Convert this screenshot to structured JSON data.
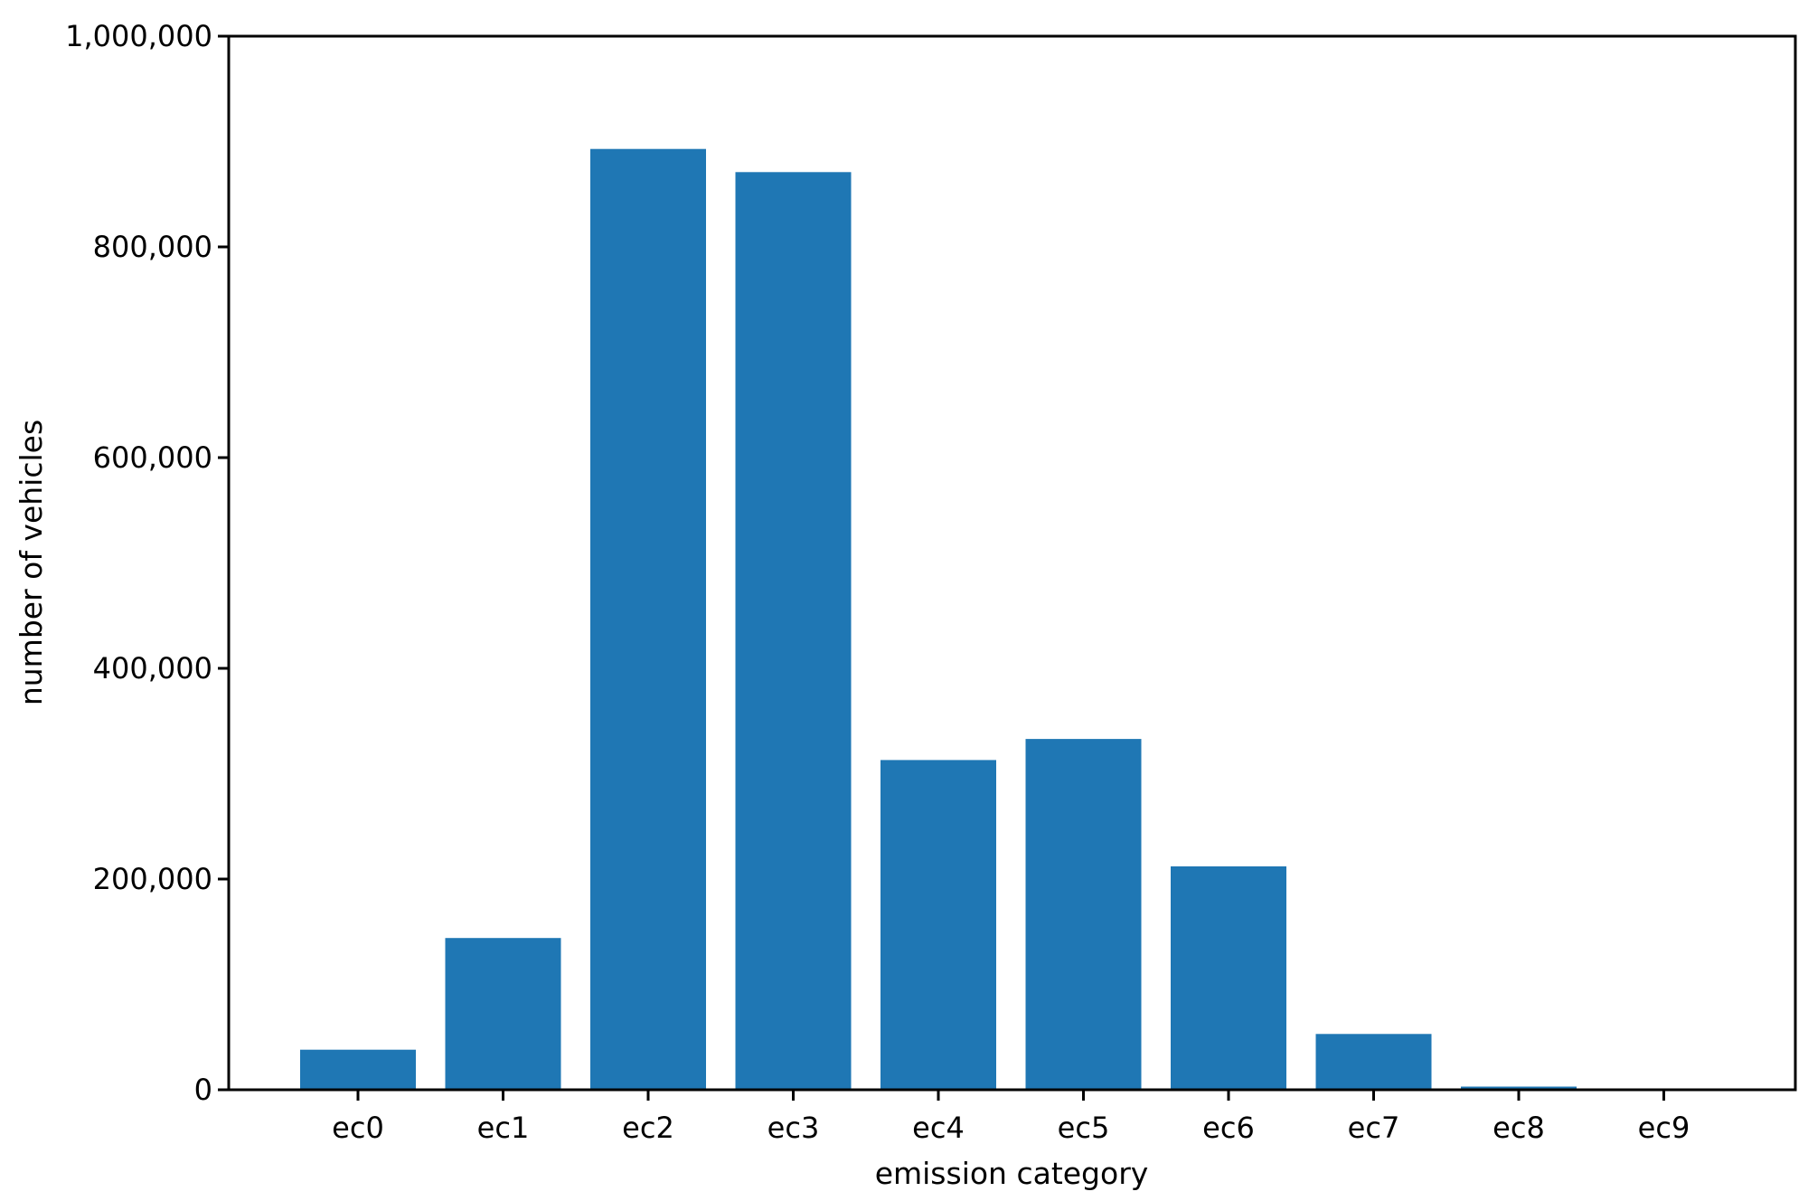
{
  "chart_data": {
    "type": "bar",
    "title": "",
    "xlabel": "emission category",
    "ylabel": "number of vehicles",
    "categories": [
      "ec0",
      "ec1",
      "ec2",
      "ec3",
      "ec4",
      "ec5",
      "ec6",
      "ec7",
      "ec8",
      "ec9"
    ],
    "values": [
      38000,
      144000,
      893000,
      871000,
      313000,
      333000,
      212000,
      53000,
      3000,
      0
    ],
    "ylim": [
      0,
      1000000
    ],
    "yticks": [
      0,
      200000,
      400000,
      600000,
      800000,
      1000000
    ],
    "ytick_labels": [
      "0",
      "200,000",
      "400,000",
      "600,000",
      "800,000",
      "1,000,000"
    ],
    "grid": false,
    "legend": "none",
    "bar_color": "#1f77b4"
  }
}
